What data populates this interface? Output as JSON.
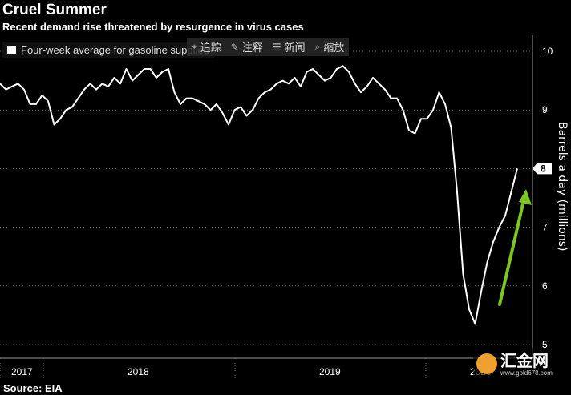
{
  "header": {
    "title": "Cruel Summer",
    "subtitle": "Recent demand rise threatened by resurgence in virus cases"
  },
  "toolbar": [
    {
      "icon": "track-icon",
      "glyph": "⌖",
      "label": "追踪"
    },
    {
      "icon": "annotate-icon",
      "glyph": "✎",
      "label": "注释"
    },
    {
      "icon": "news-icon",
      "glyph": "☰",
      "label": "新闻"
    },
    {
      "icon": "zoom-icon",
      "glyph": "⌕",
      "label": "缩放"
    }
  ],
  "source": "Source: EIA",
  "watermark": {
    "main": "汇金网",
    "sub": "www.gold678.com"
  },
  "chart_data": {
    "type": "line",
    "title": "Cruel Summer",
    "ylabel": "Barrels a day (millions)",
    "ylim": [
      5,
      10
    ],
    "yticks": [
      5,
      6,
      7,
      8,
      9,
      10
    ],
    "highlight_label": "8",
    "x_year_labels": [
      "2017",
      "2018",
      "2019",
      "2020"
    ],
    "grid": true,
    "legend": "top-left",
    "arrow_color": "#7dc520",
    "line_color": "#ffffff",
    "series": [
      {
        "name": "Four-week average for gasoline supplied",
        "values": [
          9.45,
          9.35,
          9.4,
          9.45,
          9.35,
          9.1,
          9.1,
          9.25,
          9.15,
          8.75,
          8.85,
          9.0,
          9.05,
          9.2,
          9.35,
          9.45,
          9.35,
          9.45,
          9.4,
          9.55,
          9.45,
          9.7,
          9.5,
          9.6,
          9.7,
          9.7,
          9.55,
          9.65,
          9.7,
          9.3,
          9.1,
          9.2,
          9.2,
          9.15,
          9.1,
          9.0,
          9.1,
          8.95,
          8.75,
          9.0,
          9.05,
          8.9,
          9.0,
          9.2,
          9.3,
          9.35,
          9.45,
          9.5,
          9.45,
          9.55,
          9.4,
          9.65,
          9.7,
          9.6,
          9.5,
          9.55,
          9.7,
          9.75,
          9.65,
          9.45,
          9.3,
          9.4,
          9.55,
          9.45,
          9.35,
          9.2,
          9.2,
          9.0,
          8.65,
          8.6,
          8.85,
          8.85,
          9.0,
          9.3,
          9.1,
          8.7,
          7.6,
          6.2,
          5.6,
          5.35,
          5.9,
          6.4,
          6.75,
          7.0,
          7.2,
          7.6,
          8.0
        ]
      }
    ]
  }
}
